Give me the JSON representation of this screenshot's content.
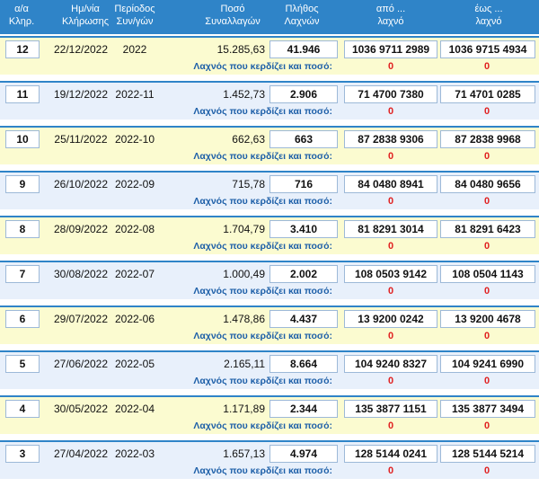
{
  "header": {
    "col_no": [
      "α/α",
      "Κληρ."
    ],
    "col_date": [
      "Ημ/νία",
      "Κλήρωσης"
    ],
    "col_period": [
      "Περίοδος",
      "Συν/γών"
    ],
    "col_amount": [
      "Ποσό",
      "Συναλλαγών"
    ],
    "col_count": [
      "Πλήθος",
      "Λαχνών"
    ],
    "col_from": [
      "από ...",
      "λαχνό"
    ],
    "col_to": [
      "έως ...",
      "λαχνό"
    ]
  },
  "win_label": "Λαχνός που κερδίζει και ποσό:",
  "draws": [
    {
      "no": "12",
      "date": "22/12/2022",
      "period": "2022",
      "amount": "15.285,63",
      "count": "41.946",
      "from": "1036 9711 2989",
      "to": "1036 9715 4934",
      "win_from": "0",
      "win_to": "0"
    },
    {
      "no": "11",
      "date": "19/12/2022",
      "period": "2022-11",
      "amount": "1.452,73",
      "count": "2.906",
      "from": "71 4700 7380",
      "to": "71 4701 0285",
      "win_from": "0",
      "win_to": "0"
    },
    {
      "no": "10",
      "date": "25/11/2022",
      "period": "2022-10",
      "amount": "662,63",
      "count": "663",
      "from": "87 2838 9306",
      "to": "87 2838 9968",
      "win_from": "0",
      "win_to": "0"
    },
    {
      "no": "9",
      "date": "26/10/2022",
      "period": "2022-09",
      "amount": "715,78",
      "count": "716",
      "from": "84 0480 8941",
      "to": "84 0480 9656",
      "win_from": "0",
      "win_to": "0"
    },
    {
      "no": "8",
      "date": "28/09/2022",
      "period": "2022-08",
      "amount": "1.704,79",
      "count": "3.410",
      "from": "81 8291 3014",
      "to": "81 8291 6423",
      "win_from": "0",
      "win_to": "0"
    },
    {
      "no": "7",
      "date": "30/08/2022",
      "period": "2022-07",
      "amount": "1.000,49",
      "count": "2.002",
      "from": "108 0503 9142",
      "to": "108 0504 1143",
      "win_from": "0",
      "win_to": "0"
    },
    {
      "no": "6",
      "date": "29/07/2022",
      "period": "2022-06",
      "amount": "1.478,86",
      "count": "4.437",
      "from": "13 9200 0242",
      "to": "13 9200 4678",
      "win_from": "0",
      "win_to": "0"
    },
    {
      "no": "5",
      "date": "27/06/2022",
      "period": "2022-05",
      "amount": "2.165,11",
      "count": "8.664",
      "from": "104 9240 8327",
      "to": "104 9241 6990",
      "win_from": "0",
      "win_to": "0"
    },
    {
      "no": "4",
      "date": "30/05/2022",
      "period": "2022-04",
      "amount": "1.171,89",
      "count": "2.344",
      "from": "135 3877 1151",
      "to": "135 3877 3494",
      "win_from": "0",
      "win_to": "0"
    },
    {
      "no": "3",
      "date": "27/04/2022",
      "period": "2022-03",
      "amount": "1.657,13",
      "count": "4.974",
      "from": "128 5144 0241",
      "to": "128 5144 5214",
      "win_from": "0",
      "win_to": "0"
    }
  ],
  "colors": {
    "header_bg": "#2f84c8",
    "row_yellow": "#fbfbd0",
    "row_blue": "#e8f0fb",
    "label_blue": "#1d5fa8",
    "zero_red": "#e02020"
  }
}
